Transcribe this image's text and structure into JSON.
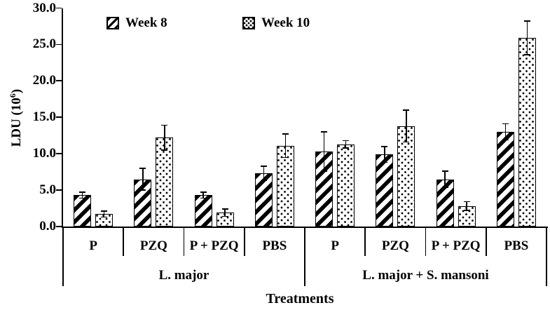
{
  "chart_data": {
    "type": "bar",
    "title": "",
    "xlabel": "Treatments",
    "ylabel": "LDU (10^6)",
    "ylabel_parts": {
      "prefix": "LDU (10",
      "sup": "6",
      "suffix": ")"
    },
    "ylim": [
      0,
      30
    ],
    "ytick_step": 5,
    "yticks": [
      "0.0",
      "5.0",
      "10.0",
      "15.0",
      "20.0",
      "25.0",
      "30.0"
    ],
    "grid": false,
    "legend_position": "top",
    "groups": [
      {
        "label": "L. major",
        "categories": [
          "P",
          "PZQ",
          "P + PZQ",
          "PBS"
        ]
      },
      {
        "label": "L. major + S. mansoni",
        "categories": [
          "P",
          "PZQ",
          "P + PZQ",
          "PBS"
        ]
      }
    ],
    "categories_flat": [
      "P",
      "PZQ",
      "P + PZQ",
      "PBS",
      "P",
      "PZQ",
      "P + PZQ",
      "PBS"
    ],
    "series": [
      {
        "name": "Week 8",
        "pattern": "diagonal-hatch",
        "values": [
          4.3,
          6.5,
          4.3,
          7.3,
          10.3,
          9.9,
          6.5,
          13.0
        ],
        "errors": [
          0.4,
          1.5,
          0.4,
          1.0,
          2.7,
          1.1,
          1.1,
          1.1
        ]
      },
      {
        "name": "Week 10",
        "pattern": "dots",
        "values": [
          1.7,
          12.2,
          1.9,
          11.1,
          11.3,
          13.8,
          2.8,
          25.9
        ],
        "errors": [
          0.4,
          1.7,
          0.5,
          1.6,
          0.5,
          2.2,
          0.6,
          2.3
        ]
      }
    ],
    "colors": {
      "bar_fill": "#ffffff",
      "bar_stroke": "#000000",
      "text": "#000000",
      "background": "#ffffff"
    }
  }
}
